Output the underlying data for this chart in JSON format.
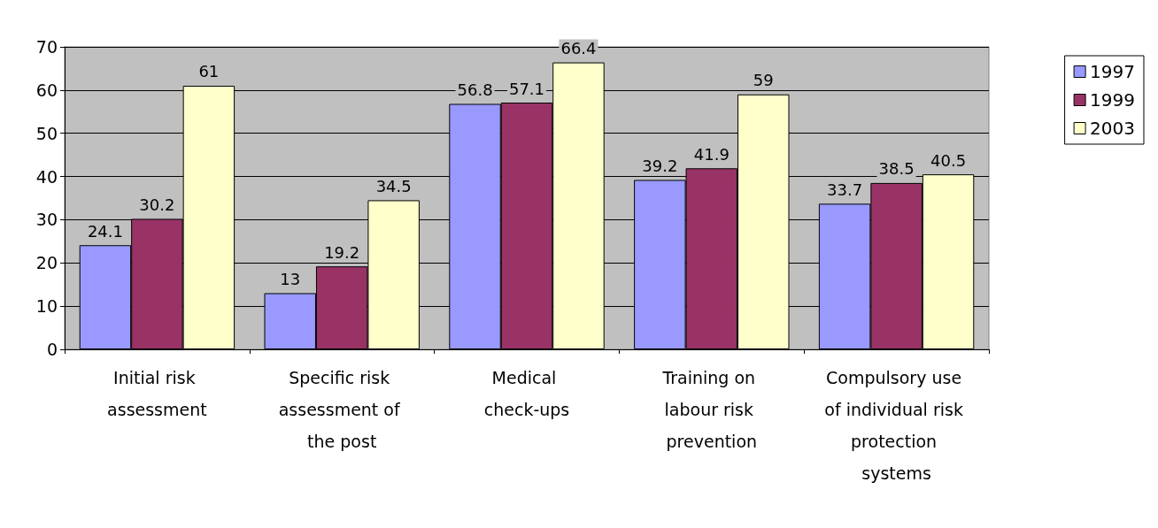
{
  "chart_data": {
    "type": "bar",
    "categories": [
      "Initial risk assessment",
      "Specific risk assessment of the post",
      "Medical check-ups",
      "Training on labour risk prevention",
      "Compulsory use of individual risk protection systems"
    ],
    "series": [
      {
        "name": "1997",
        "color": "#9999ff",
        "values": [
          24.1,
          13,
          56.8,
          39.2,
          33.7
        ]
      },
      {
        "name": "1999",
        "color": "#993366",
        "values": [
          30.2,
          19.2,
          57.1,
          41.9,
          38.5
        ]
      },
      {
        "name": "2003",
        "color": "#ffffcc",
        "values": [
          61,
          34.5,
          66.4,
          59,
          40.5
        ]
      }
    ],
    "ylim": [
      0,
      70
    ],
    "yticks": [
      0,
      10,
      20,
      30,
      40,
      50,
      60,
      70
    ],
    "grid": "y",
    "legend": "right",
    "data_labels": true
  }
}
